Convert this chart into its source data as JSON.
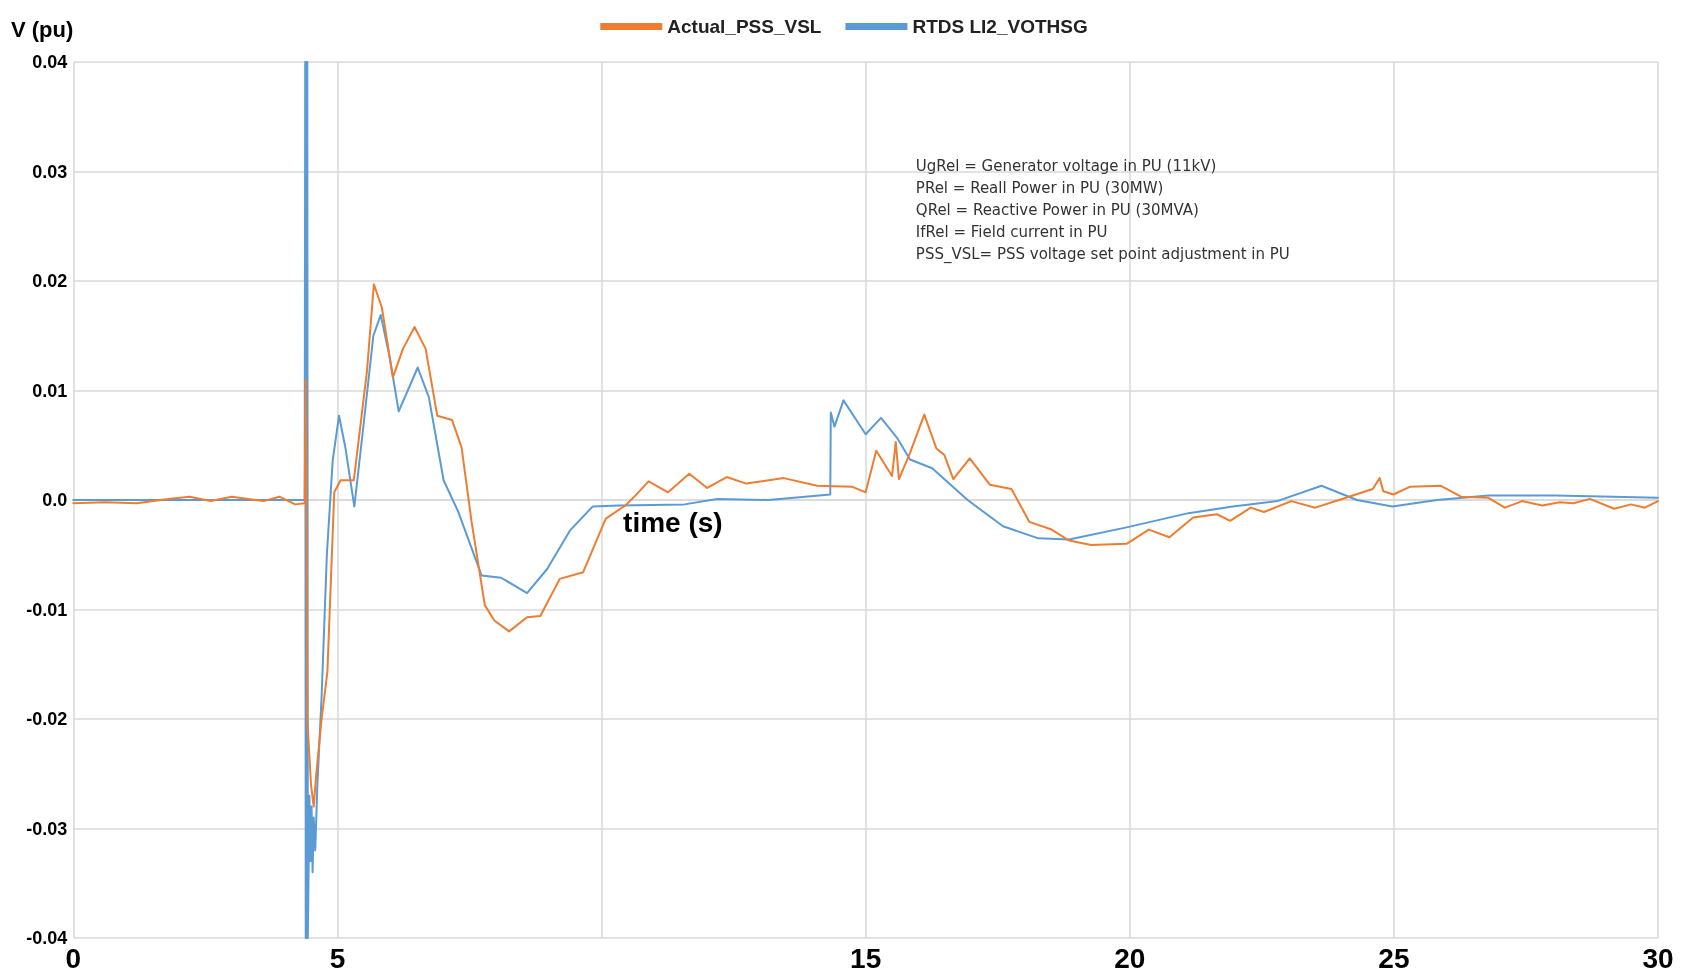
{
  "chart_data": {
    "type": "line",
    "ylabel": "V (pu)",
    "xlabel": "time (s)",
    "legend": "top",
    "grid": true,
    "marker": "none",
    "line_style": "solid",
    "xlim": [
      0,
      30
    ],
    "xticks": [
      0,
      5,
      {
        "value": 10,
        "label": null
      },
      15,
      20,
      25,
      30
    ],
    "ylim": [
      -0.04,
      0.04
    ],
    "yticks": [
      -0.04,
      -0.03,
      -0.02,
      -0.01,
      {
        "value": 0,
        "label": "0.0"
      },
      0.01,
      0.02,
      0.03,
      0.04
    ],
    "annotations": [
      "UgRel = Generator voltage in PU (11kV)",
      "PRel = Reall Power in PU (30MW)",
      "QRel = Reactive Power in PU (30MVA)",
      "IfRel = Field current in PU",
      "PSS_VSL= PSS voltage set point adjustment in PU"
    ],
    "series": [
      {
        "name": "Actual_PSS_VSL",
        "color": "#ed7d31",
        "x": [
          0,
          0.6,
          1.2,
          1.8,
          2.2,
          2.6,
          3.0,
          3.6,
          3.9,
          4.2,
          4.38,
          4.4,
          4.43,
          4.5,
          4.55,
          4.6,
          4.7,
          4.81,
          4.94,
          5.06,
          5.31,
          5.56,
          5.69,
          5.84,
          6.05,
          6.24,
          6.46,
          6.67,
          6.89,
          7.17,
          7.35,
          7.54,
          7.79,
          7.97,
          8.25,
          8.59,
          8.84,
          9.21,
          9.65,
          10.08,
          10.45,
          10.64,
          10.89,
          11.26,
          11.66,
          12.0,
          12.37,
          12.74,
          13.45,
          14.08,
          14.75,
          15.0,
          15.2,
          15.5,
          15.57,
          15.63,
          15.84,
          16.11,
          16.34,
          16.49,
          16.66,
          16.97,
          17.35,
          17.76,
          18.1,
          18.52,
          18.85,
          19.27,
          19.94,
          20.36,
          20.75,
          21.2,
          21.65,
          21.9,
          22.29,
          22.54,
          23.06,
          23.51,
          23.96,
          24.6,
          24.73,
          24.8,
          24.99,
          25.3,
          25.89,
          26.27,
          26.79,
          27.1,
          27.43,
          27.81,
          28.14,
          28.4,
          28.71,
          29.17,
          29.49,
          29.75,
          30
        ],
        "values": [
          -0.0003,
          -0.0002,
          -0.0003,
          0.0001,
          0.0003,
          -0.0001,
          0.0003,
          -0.0001,
          0.0003,
          -0.0004,
          -0.0003,
          0.011,
          -0.02,
          -0.026,
          -0.028,
          -0.025,
          -0.02,
          -0.0157,
          0.0007,
          0.0018,
          0.0018,
          0.0118,
          0.0197,
          0.0176,
          0.0112,
          0.0138,
          0.0158,
          0.0138,
          0.0077,
          0.0073,
          0.0048,
          -0.002,
          -0.0096,
          -0.011,
          -0.012,
          -0.0107,
          -0.0106,
          -0.0072,
          -0.0066,
          -0.0017,
          -0.0005,
          0.0004,
          0.0017,
          0.0007,
          0.0024,
          0.0011,
          0.0021,
          0.0015,
          0.002,
          0.0013,
          0.0012,
          0.0007,
          0.0045,
          0.0022,
          0.0053,
          0.0019,
          0.0043,
          0.0078,
          0.0047,
          0.0041,
          0.0019,
          0.0038,
          0.0014,
          0.001,
          -0.002,
          -0.0027,
          -0.0037,
          -0.0041,
          -0.004,
          -0.0027,
          -0.0034,
          -0.0016,
          -0.0013,
          -0.0019,
          -0.0007,
          -0.0011,
          -0.0001,
          -0.0007,
          0,
          0.001,
          0.002,
          0.0008,
          0.0005,
          0.0012,
          0.0013,
          0.0003,
          0.0002,
          -0.0007,
          -0.0001,
          -0.0005,
          -0.0002,
          -0.0003,
          0.0001,
          -0.0008,
          -0.0004,
          -0.0007,
          -0.0001
        ]
      },
      {
        "name": "RTDS LI2_VOTHSG",
        "color": "#5b9bd5",
        "x": [
          0,
          2,
          4.0,
          4.38,
          4.39,
          4.4,
          4.41,
          4.42,
          4.43,
          4.44,
          4.47,
          4.49,
          4.51,
          4.53,
          4.55,
          4.58,
          4.62,
          4.7,
          4.8,
          4.91,
          5.03,
          5.15,
          5.32,
          5.5,
          5.68,
          5.82,
          5.99,
          6.16,
          6.52,
          6.73,
          7.01,
          7.29,
          7.73,
          8.1,
          8.59,
          8.97,
          9.4,
          9.83,
          10.33,
          11.57,
          12.19,
          13.16,
          14.33,
          14.34,
          14.41,
          14.58,
          15.0,
          15.29,
          15.59,
          15.84,
          16.26,
          16.93,
          17.6,
          18.27,
          18.85,
          19.94,
          21.11,
          21.95,
          22.79,
          23.63,
          24.3,
          24.97,
          25.82,
          26.79,
          28.07,
          30
        ],
        "values": [
          0,
          0,
          0,
          0,
          0.04,
          -0.04,
          0.04,
          -0.04,
          0.04,
          -0.04,
          -0.027,
          -0.033,
          -0.028,
          -0.034,
          -0.029,
          -0.032,
          -0.026,
          -0.018,
          -0.005,
          0.0036,
          0.0077,
          0.0048,
          -0.0006,
          0.0071,
          0.015,
          0.0169,
          0.013,
          0.0081,
          0.0121,
          0.0094,
          0.0018,
          -0.0011,
          -0.0069,
          -0.0071,
          -0.0085,
          -0.0063,
          -0.0028,
          -0.0006,
          -0.0005,
          -0.0004,
          0.0001,
          0,
          0.0005,
          0.008,
          0.0067,
          0.0091,
          0.006,
          0.0075,
          0.0057,
          0.0037,
          0.0029,
          0,
          -0.0024,
          -0.0035,
          -0.0036,
          -0.0025,
          -0.0012,
          -0.0006,
          -0.0001,
          0.0013,
          0,
          -0.0006,
          0,
          0.0004,
          0.0004,
          0.0002
        ]
      }
    ]
  }
}
